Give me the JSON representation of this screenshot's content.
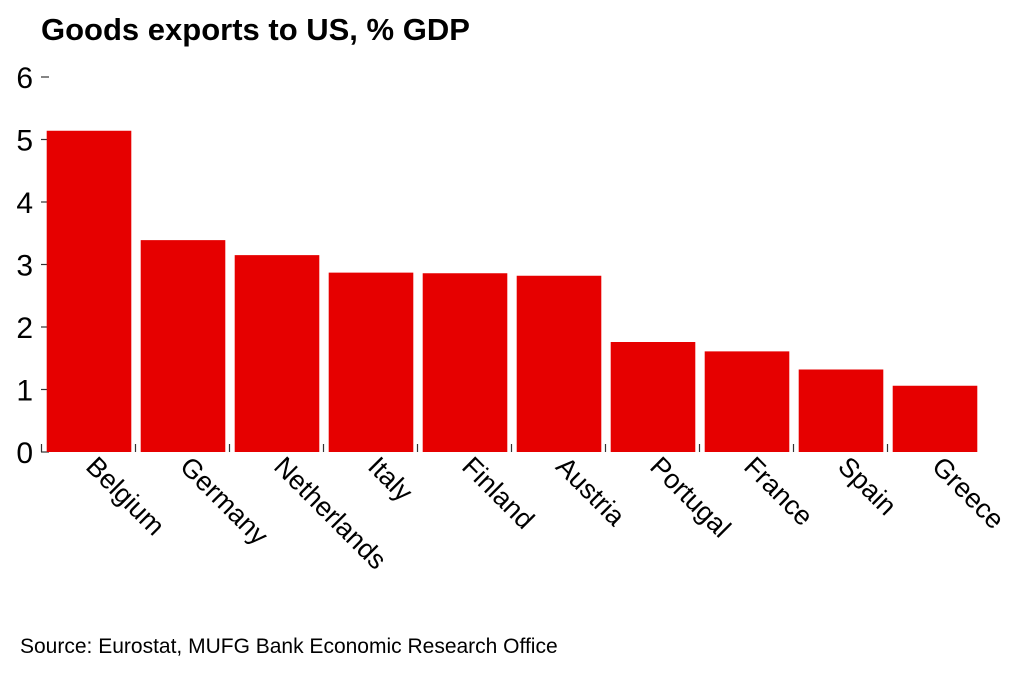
{
  "chart_data": {
    "type": "bar",
    "title": "Goods exports to US, % GDP",
    "xlabel": "",
    "ylabel": "",
    "categories": [
      "Belgium",
      "Germany",
      "Netherlands",
      "Italy",
      "Finland",
      "Austria",
      "Portugal",
      "France",
      "Spain",
      "Greece"
    ],
    "values": [
      5.14,
      3.39,
      3.15,
      2.87,
      2.86,
      2.82,
      1.76,
      1.61,
      1.32,
      1.06
    ],
    "ylim": [
      0,
      6
    ],
    "yticks": [
      0,
      1,
      2,
      3,
      4,
      5,
      6
    ],
    "ytick_labels": [
      "0",
      "1",
      "2",
      "3",
      "4",
      "5",
      "6"
    ],
    "grid": false,
    "legend": "none",
    "bar_color": "#e60000",
    "source": "Source: Eurostat, MUFG Bank Economic Research Office"
  }
}
